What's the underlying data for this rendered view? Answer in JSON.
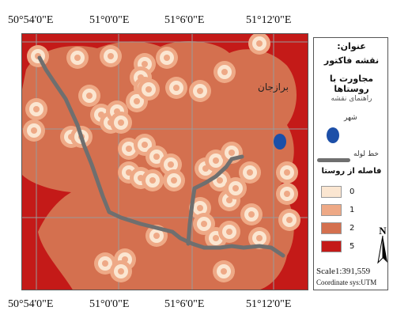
{
  "coordinates": {
    "top": [
      "50°54'0\"E",
      "51°0'0\"E",
      "51°6'0\"E",
      "51°12'0\"E"
    ],
    "bottom": [
      "50°54'0\"E",
      "51°0'0\"E",
      "51°6'0\"E",
      "51°12'0\"E"
    ]
  },
  "map": {
    "city_name": "برازجان",
    "colors": {
      "class_0": "#fbe6d1",
      "class_1": "#eea986",
      "class_2": "#d4704f",
      "class_5": "#c41a18",
      "pipeline": "#6f6f6f",
      "city": "#1c4fa8",
      "grid": "#9a9a9a"
    }
  },
  "legend": {
    "title_line1": "عنوان:",
    "title_line2": "نقشه فاکتور",
    "title_line3": "مجاورت با روستاها",
    "guide": "راهنمای نقشه",
    "city_label": "شهر",
    "pipeline_label": "خط لوله",
    "distance_title": "فاصله از روستا",
    "classes": [
      {
        "label": "0",
        "color": "#fbe6d1"
      },
      {
        "label": "1",
        "color": "#eea986"
      },
      {
        "label": "2",
        "color": "#d4704f"
      },
      {
        "label": "5",
        "color": "#c41a18"
      }
    ],
    "north": "N",
    "scale": "Scale1:391,559",
    "coordinate_system": "Coordinate sys:UTM"
  }
}
